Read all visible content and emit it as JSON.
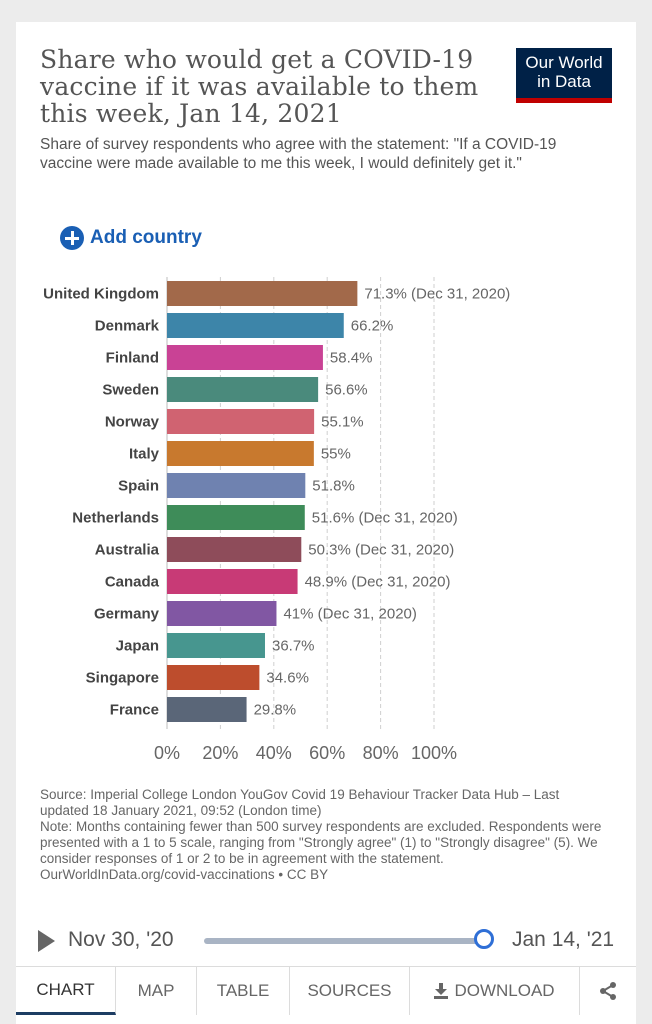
{
  "header": {
    "title": "Share who would get a COVID-19 vaccine if it was available to them this week, Jan 14, 2021",
    "subtitle": "Share of survey respondents who agree with the statement: \"If a COVID-19 vaccine were made available to me this week, I would definitely get it.\"",
    "logo_line1": "Our World",
    "logo_line2": "in Data",
    "logo_bg": "#002147",
    "logo_accent": "#c00000"
  },
  "controls": {
    "add_country_label": "Add country",
    "accent": "#1a5fb4"
  },
  "chart_data": {
    "type": "bar",
    "orientation": "horizontal",
    "title": "Share who would get a COVID-19 vaccine if it was available to them this week, Jan 14, 2021",
    "xlim": [
      0,
      100
    ],
    "x_ticks": [
      "0%",
      "20%",
      "40%",
      "60%",
      "80%",
      "100%"
    ],
    "x_tick_values": [
      0,
      20,
      40,
      60,
      80,
      100
    ],
    "grid": true,
    "categories": [
      "United Kingdom",
      "Denmark",
      "Finland",
      "Sweden",
      "Norway",
      "Italy",
      "Spain",
      "Netherlands",
      "Australia",
      "Canada",
      "Germany",
      "Japan",
      "Singapore",
      "France"
    ],
    "values": [
      71.3,
      66.2,
      58.4,
      56.6,
      55.1,
      55,
      51.8,
      51.6,
      50.3,
      48.9,
      41,
      36.7,
      34.6,
      29.8
    ],
    "labels": [
      "71.3% (Dec 31, 2020)",
      "66.2%",
      "58.4%",
      "56.6%",
      "55.1%",
      "55%",
      "51.8%",
      "51.6% (Dec 31, 2020)",
      "50.3% (Dec 31, 2020)",
      "48.9% (Dec 31, 2020)",
      "41% (Dec 31, 2020)",
      "36.7%",
      "34.6%",
      "29.8%"
    ],
    "colors": [
      "#a2694a",
      "#3d85a9",
      "#c94295",
      "#4a8a7c",
      "#d06371",
      "#c8792e",
      "#6f82b0",
      "#3e8c59",
      "#8e4c5a",
      "#c83a76",
      "#8157a3",
      "#47968f",
      "#bd4d2d",
      "#5a6678"
    ]
  },
  "footer": {
    "source": "Source: Imperial College London YouGov Covid 19 Behaviour Tracker Data Hub – Last updated 18 January 2021, 09:52 (London time)",
    "note": "Note: Months containing fewer than 500 survey respondents are excluded. Respondents were presented with a 1 to 5 scale, ranging from \"Strongly agree\" (1) to \"Strongly disagree\" (5). We consider responses of 1 or 2 to be in agreement with the statement.",
    "url": "OurWorldInData.org/covid-vaccinations • CC BY"
  },
  "timeline": {
    "start_label": "Nov 30, '20",
    "end_label": "Jan 14, '21",
    "position": 1.0
  },
  "tabs": [
    {
      "label": "CHART",
      "active": true
    },
    {
      "label": "MAP",
      "active": false
    },
    {
      "label": "TABLE",
      "active": false
    },
    {
      "label": "SOURCES",
      "active": false
    },
    {
      "label": "DOWNLOAD",
      "active": false
    }
  ],
  "icons": {
    "play": "play-icon",
    "add": "plus-circle-icon",
    "download": "download-icon",
    "share": "share-icon"
  }
}
